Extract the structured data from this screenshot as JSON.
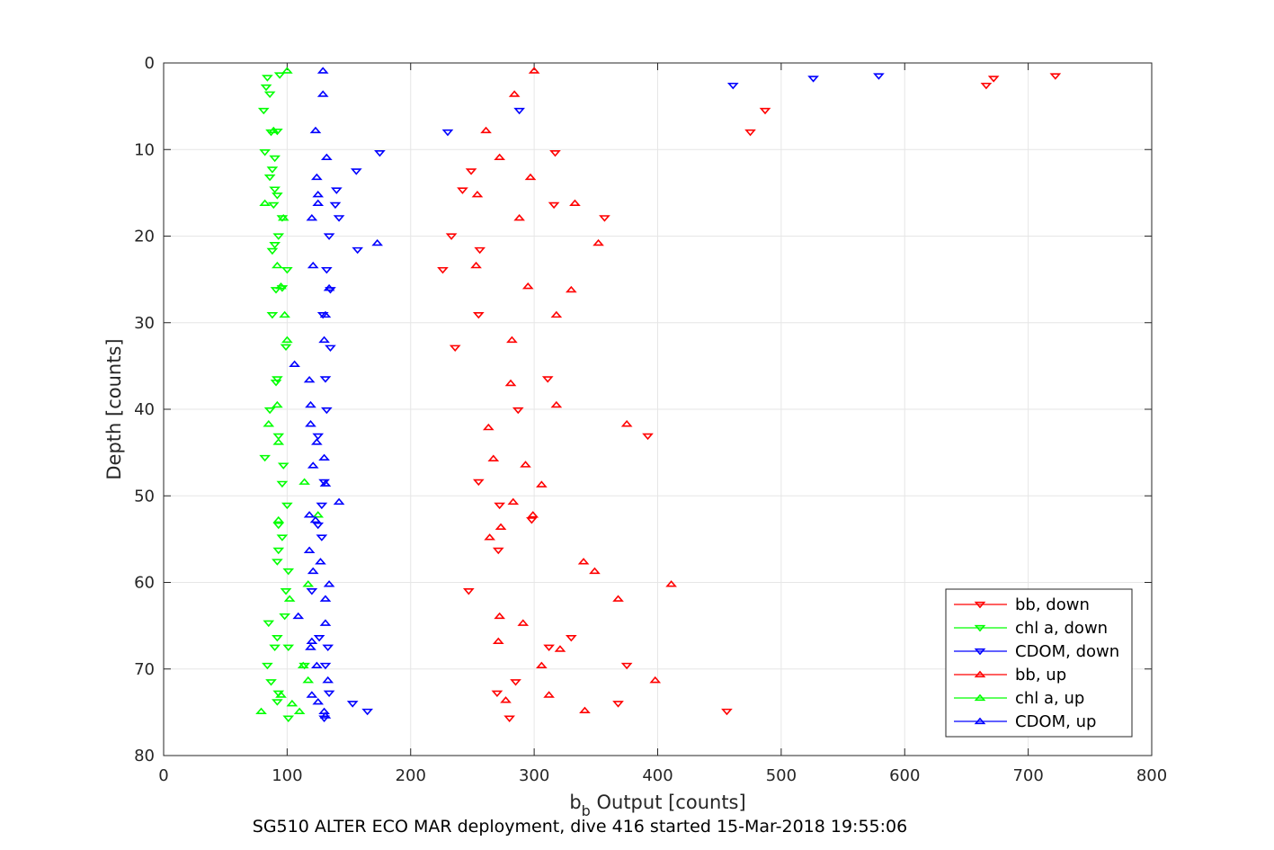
{
  "chart_data": {
    "type": "scatter",
    "caption": "SG510 ALTER ECO MAR deployment, dive 416 started 15-Mar-2018 19:55:06",
    "xlabel_main": "b",
    "xlabel_sub": "b",
    "xlabel_rest": " Output [counts]",
    "ylabel": "Depth [counts]",
    "xlim": [
      0,
      800
    ],
    "ylim": [
      0,
      80
    ],
    "y_reversed": true,
    "grid": true,
    "legend_position": "bottom-right",
    "x_ticks": [
      "0",
      "100",
      "200",
      "300",
      "400",
      "500",
      "600",
      "700",
      "800"
    ],
    "y_ticks": [
      "0",
      "10",
      "20",
      "30",
      "40",
      "50",
      "60",
      "70",
      "80"
    ],
    "colors": {
      "red": "#ff0000",
      "green": "#00ff00",
      "blue": "#0000ff",
      "grid": "#e6e6e6",
      "axis": "#262626"
    },
    "series": [
      {
        "name": "bb, down",
        "color": "#ff0000",
        "marker": "triangle-down",
        "points": [
          [
            722,
            1.5
          ],
          [
            672,
            1.8
          ],
          [
            666,
            2.6
          ],
          [
            487,
            5.5
          ],
          [
            475,
            8.0
          ],
          [
            317,
            10.4
          ],
          [
            249,
            12.5
          ],
          [
            242,
            14.7
          ],
          [
            316,
            16.4
          ],
          [
            357,
            17.9
          ],
          [
            233,
            20.0
          ],
          [
            256,
            21.6
          ],
          [
            226,
            23.9
          ],
          [
            255,
            29.1
          ],
          [
            236,
            32.9
          ],
          [
            311,
            36.5
          ],
          [
            287,
            40.1
          ],
          [
            392,
            43.1
          ],
          [
            255,
            48.4
          ],
          [
            272,
            51.1
          ],
          [
            298,
            52.8
          ],
          [
            271,
            56.3
          ],
          [
            247,
            61.0
          ],
          [
            330,
            66.4
          ],
          [
            312,
            67.5
          ],
          [
            375,
            69.6
          ],
          [
            285,
            71.5
          ],
          [
            270,
            72.8
          ],
          [
            368,
            74.0
          ],
          [
            456,
            74.9
          ],
          [
            280,
            75.7
          ]
        ]
      },
      {
        "name": "chl a, down",
        "color": "#00ff00",
        "marker": "triangle-down",
        "points": [
          [
            84,
            1.7
          ],
          [
            94,
            1.4
          ],
          [
            83,
            2.8
          ],
          [
            86,
            3.6
          ],
          [
            81,
            5.5
          ],
          [
            92,
            7.9
          ],
          [
            87,
            8.0
          ],
          [
            82,
            10.3
          ],
          [
            90,
            11.0
          ],
          [
            88,
            12.3
          ],
          [
            86,
            13.2
          ],
          [
            90,
            14.6
          ],
          [
            92,
            15.3
          ],
          [
            89,
            16.4
          ],
          [
            96,
            17.9
          ],
          [
            93,
            20.0
          ],
          [
            90,
            21.0
          ],
          [
            88,
            21.7
          ],
          [
            100,
            23.9
          ],
          [
            91,
            26.2
          ],
          [
            96,
            26.0
          ],
          [
            88,
            29.1
          ],
          [
            99,
            32.8
          ],
          [
            92,
            36.5
          ],
          [
            91,
            36.9
          ],
          [
            86,
            40.1
          ],
          [
            93,
            43.1
          ],
          [
            82,
            45.6
          ],
          [
            97,
            46.5
          ],
          [
            96,
            48.6
          ],
          [
            100,
            51.1
          ],
          [
            93,
            53.4
          ],
          [
            96,
            54.8
          ],
          [
            93,
            56.3
          ],
          [
            92,
            57.6
          ],
          [
            101,
            58.7
          ],
          [
            99,
            61.0
          ],
          [
            98,
            63.9
          ],
          [
            85,
            64.7
          ],
          [
            92,
            66.4
          ],
          [
            90,
            67.5
          ],
          [
            101,
            67.5
          ],
          [
            84,
            69.6
          ],
          [
            87,
            71.5
          ],
          [
            93,
            72.8
          ],
          [
            92,
            73.8
          ],
          [
            114,
            69.6
          ],
          [
            101,
            75.7
          ]
        ]
      },
      {
        "name": "CDOM, down",
        "color": "#0000ff",
        "marker": "triangle-down",
        "points": [
          [
            579,
            1.5
          ],
          [
            526,
            1.8
          ],
          [
            461,
            2.6
          ],
          [
            288,
            5.5
          ],
          [
            230,
            8.0
          ],
          [
            175,
            10.4
          ],
          [
            156,
            12.5
          ],
          [
            140,
            14.7
          ],
          [
            139,
            16.4
          ],
          [
            142,
            17.9
          ],
          [
            134,
            20.0
          ],
          [
            157,
            21.6
          ],
          [
            132,
            23.9
          ],
          [
            135,
            26.2
          ],
          [
            129,
            29.1
          ],
          [
            135,
            32.9
          ],
          [
            131,
            36.5
          ],
          [
            132,
            40.1
          ],
          [
            125,
            43.1
          ],
          [
            130,
            48.4
          ],
          [
            128,
            51.1
          ],
          [
            125,
            53.4
          ],
          [
            128,
            54.8
          ],
          [
            120,
            61.0
          ],
          [
            126,
            66.4
          ],
          [
            133,
            67.5
          ],
          [
            131,
            69.6
          ],
          [
            134,
            72.8
          ],
          [
            153,
            74.0
          ],
          [
            165,
            74.9
          ],
          [
            130,
            75.7
          ]
        ]
      },
      {
        "name": "bb, up",
        "color": "#ff0000",
        "marker": "triangle-up",
        "points": [
          [
            300,
            0.9
          ],
          [
            284,
            3.6
          ],
          [
            261,
            7.8
          ],
          [
            272,
            10.9
          ],
          [
            297,
            13.2
          ],
          [
            254,
            15.2
          ],
          [
            333,
            16.2
          ],
          [
            288,
            17.9
          ],
          [
            352,
            20.8
          ],
          [
            253,
            23.4
          ],
          [
            295,
            25.8
          ],
          [
            330,
            26.2
          ],
          [
            318,
            29.1
          ],
          [
            282,
            32.0
          ],
          [
            281,
            37.0
          ],
          [
            318,
            39.5
          ],
          [
            263,
            42.1
          ],
          [
            375,
            41.7
          ],
          [
            267,
            45.7
          ],
          [
            293,
            46.4
          ],
          [
            306,
            48.7
          ],
          [
            283,
            50.7
          ],
          [
            299,
            52.2
          ],
          [
            273,
            53.6
          ],
          [
            264,
            54.8
          ],
          [
            340,
            57.6
          ],
          [
            349,
            58.7
          ],
          [
            411,
            60.2
          ],
          [
            368,
            61.9
          ],
          [
            272,
            63.9
          ],
          [
            291,
            64.7
          ],
          [
            271,
            66.8
          ],
          [
            321,
            67.7
          ],
          [
            306,
            69.6
          ],
          [
            398,
            71.3
          ],
          [
            312,
            73.0
          ],
          [
            277,
            73.6
          ],
          [
            341,
            74.8
          ]
        ]
      },
      {
        "name": "chl a, up",
        "color": "#00ff00",
        "marker": "triangle-up",
        "points": [
          [
            100,
            0.9
          ],
          [
            89,
            7.8
          ],
          [
            82,
            16.2
          ],
          [
            97,
            17.9
          ],
          [
            92,
            23.4
          ],
          [
            95,
            25.8
          ],
          [
            98,
            29.1
          ],
          [
            100,
            32.0
          ],
          [
            92,
            39.5
          ],
          [
            85,
            41.7
          ],
          [
            93,
            43.8
          ],
          [
            114,
            48.4
          ],
          [
            93,
            52.8
          ],
          [
            125,
            52.2
          ],
          [
            117,
            60.2
          ],
          [
            102,
            61.9
          ],
          [
            113,
            69.6
          ],
          [
            117,
            71.3
          ],
          [
            95,
            73.0
          ],
          [
            104,
            74.0
          ],
          [
            110,
            74.9
          ],
          [
            79,
            74.9
          ]
        ]
      },
      {
        "name": "CDOM, up",
        "color": "#0000ff",
        "marker": "triangle-up",
        "points": [
          [
            129,
            0.9
          ],
          [
            129,
            3.6
          ],
          [
            123,
            7.8
          ],
          [
            132,
            10.9
          ],
          [
            124,
            13.2
          ],
          [
            125,
            15.2
          ],
          [
            125,
            16.2
          ],
          [
            120,
            17.9
          ],
          [
            173,
            20.8
          ],
          [
            121,
            23.4
          ],
          [
            134,
            26.0
          ],
          [
            131,
            29.1
          ],
          [
            130,
            32.0
          ],
          [
            106,
            34.8
          ],
          [
            118,
            36.6
          ],
          [
            119,
            39.5
          ],
          [
            119,
            41.7
          ],
          [
            124,
            43.8
          ],
          [
            130,
            45.6
          ],
          [
            121,
            46.5
          ],
          [
            131,
            48.6
          ],
          [
            142,
            50.7
          ],
          [
            118,
            52.2
          ],
          [
            123,
            52.8
          ],
          [
            118,
            56.3
          ],
          [
            127,
            57.6
          ],
          [
            121,
            58.7
          ],
          [
            134,
            60.2
          ],
          [
            131,
            61.9
          ],
          [
            109,
            63.9
          ],
          [
            131,
            64.7
          ],
          [
            120,
            66.8
          ],
          [
            119,
            67.5
          ],
          [
            124,
            69.6
          ],
          [
            133,
            71.3
          ],
          [
            120,
            73.0
          ],
          [
            125,
            73.8
          ],
          [
            130,
            74.9
          ],
          [
            131,
            75.4
          ]
        ]
      }
    ]
  }
}
